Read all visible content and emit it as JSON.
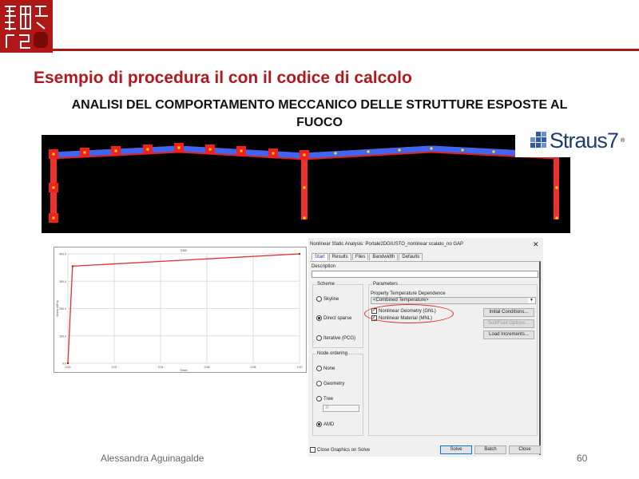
{
  "slide": {
    "title": "Esempio di procedura il con il codice di calcolo",
    "subtitle": "ANALISI DEL COMPORTAMENTO MECCANICO DELLE STRUTTURE ESPOSTE AL FUOCO",
    "author": "Alessandra Aguinagalde",
    "page_number": "60",
    "logo_text": "Straus7",
    "logo_mark": "®",
    "accent_color": "#b0191d"
  },
  "chart_data": {
    "type": "line",
    "title": "S355",
    "xlabel": "Strain",
    "ylabel": "Stress (MPa)",
    "xlim": [
      0,
      0.1
    ],
    "ylim": [
      0,
      400
    ],
    "xticks": [
      "0.00",
      "0.02",
      "0.04",
      "0.06",
      "0.08",
      "0.10"
    ],
    "yticks": [
      "0.0",
      "100.0",
      "200.0",
      "300.0",
      "400.0"
    ],
    "grid": true,
    "series": [
      {
        "x": [
          0,
          0.002,
          0.1
        ],
        "y": [
          0,
          355,
          400
        ],
        "color": "#e03030"
      }
    ]
  },
  "dialog": {
    "title": "Nonlinear Static Analysis: Portale2DGIUSTO_nonlinear scalato_no GAP",
    "close": "✕",
    "tabs": [
      "Start",
      "Results",
      "Files",
      "Bandwidth",
      "Defaults"
    ],
    "description_label": "Description",
    "description_value": "",
    "scheme": {
      "label": "Scheme",
      "options": [
        "Skyline",
        "Direct sparse",
        "Iterative (PCG)"
      ],
      "selected": "Direct sparse"
    },
    "node_ordering": {
      "label": "Node ordering",
      "options": [
        "None",
        "Geometry",
        "Tree",
        "AMD"
      ],
      "selected": "AMD",
      "tree_value": "0"
    },
    "parameters": {
      "label": "Parameters",
      "ptd_label": "Property Temperature Dependence",
      "ptd_value": "<Combined Temperature>",
      "nonlinear_geometry": "Nonlinear Geometry (GNL)",
      "nonlinear_material": "Nonlinear Material (MNL)",
      "initial_conditions": "Initial Conditions...",
      "soil_fluid": "Soil/Fluid Options...",
      "load_increments": "Load Increments..."
    },
    "close_graphics": "Close Graphics on Solve",
    "solve": "Solve",
    "batch": "Batch",
    "close_btn": "Close"
  }
}
